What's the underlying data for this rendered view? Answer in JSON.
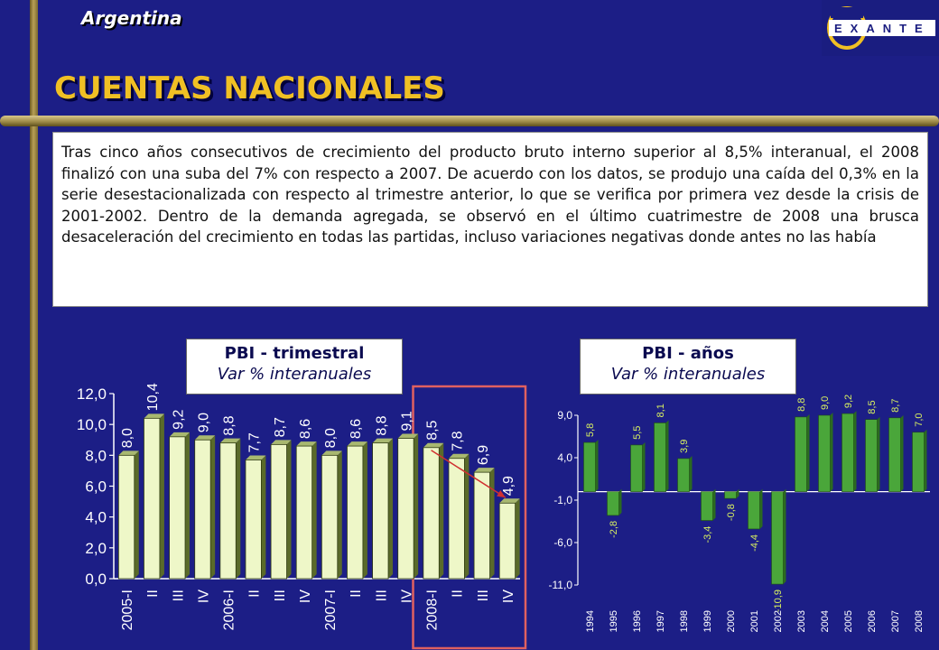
{
  "header": {
    "country": "Argentina",
    "title": "CUENTAS NACIONALES",
    "logo_text": "EXANTE"
  },
  "body_text": "Tras cinco años consecutivos de crecimiento del producto bruto interno superior al 8,5% interanual, el 2008 finalizó con una suba del 7% con respecto a 2007. De acuerdo con los datos, se produjo una caída del 0,3% en la serie desestacionalizada con respecto al trimestre anterior, lo que se verifica por primera vez desde la crisis de 2001-2002. Dentro de la demanda agregada, se observó en el último cuatrimestre de 2008 una brusca desaceleración del crecimiento en todas las partidas, incluso variaciones negativas donde antes no las había",
  "colors": {
    "background": "#1c1e86",
    "title": "#f0c024",
    "bar_fill_quarterly": "#eef7c8",
    "bar_fill_annual": "#4aa63a",
    "highlight_box": "#e06060",
    "trend_arrow": "#d03030"
  },
  "chart_data": [
    {
      "type": "bar",
      "box_title": "PBI - trimestral",
      "box_subtitle": "Var % interanuales",
      "categories": [
        "2005-I",
        "II",
        "III",
        "IV",
        "2006-I",
        "II",
        "III",
        "IV",
        "2007-I",
        "II",
        "III",
        "IV",
        "2008-I",
        "II",
        "III",
        "IV"
      ],
      "values": [
        8.0,
        10.4,
        9.2,
        9.0,
        8.8,
        7.7,
        8.7,
        8.6,
        8.0,
        8.6,
        8.8,
        9.1,
        8.5,
        7.8,
        6.9,
        4.9
      ],
      "value_labels": [
        "8,0",
        "10,4",
        "9,2",
        "9,0",
        "8,8",
        "7,7",
        "8,7",
        "8,6",
        "8,0",
        "8,6",
        "8,8",
        "9,1",
        "8,5",
        "7,8",
        "6,9",
        "4,9"
      ],
      "ylim": [
        0,
        12
      ],
      "yticks": [
        "0,0",
        "2,0",
        "4,0",
        "6,0",
        "8,0",
        "10,0",
        "12,0"
      ],
      "highlight": "2008-I to IV",
      "trend_arrow": "from 2008-I to IV"
    },
    {
      "type": "bar",
      "box_title": "PBI - años",
      "box_subtitle": "Var % interanuales",
      "categories": [
        "1994",
        "1995",
        "1996",
        "1997",
        "1998",
        "1999",
        "2000",
        "2001",
        "2002",
        "2003",
        "2004",
        "2005",
        "2006",
        "2007",
        "2008"
      ],
      "values": [
        5.8,
        -2.8,
        5.5,
        8.1,
        3.9,
        -3.4,
        -0.8,
        -4.4,
        -10.9,
        8.8,
        9.0,
        9.2,
        8.5,
        8.7,
        7.0
      ],
      "value_labels": [
        "5,8",
        "-2,8",
        "5,5",
        "8,1",
        "3,9",
        "-3,4",
        "-0,8",
        "-4,4",
        "-10,9",
        "8,8",
        "9,0",
        "9,2",
        "8,5",
        "8,7",
        "7,0"
      ],
      "ylim": [
        -11,
        9
      ],
      "yticks": [
        "-11,0",
        "-6,0",
        "-1,0",
        "4,0",
        "9,0"
      ]
    }
  ]
}
